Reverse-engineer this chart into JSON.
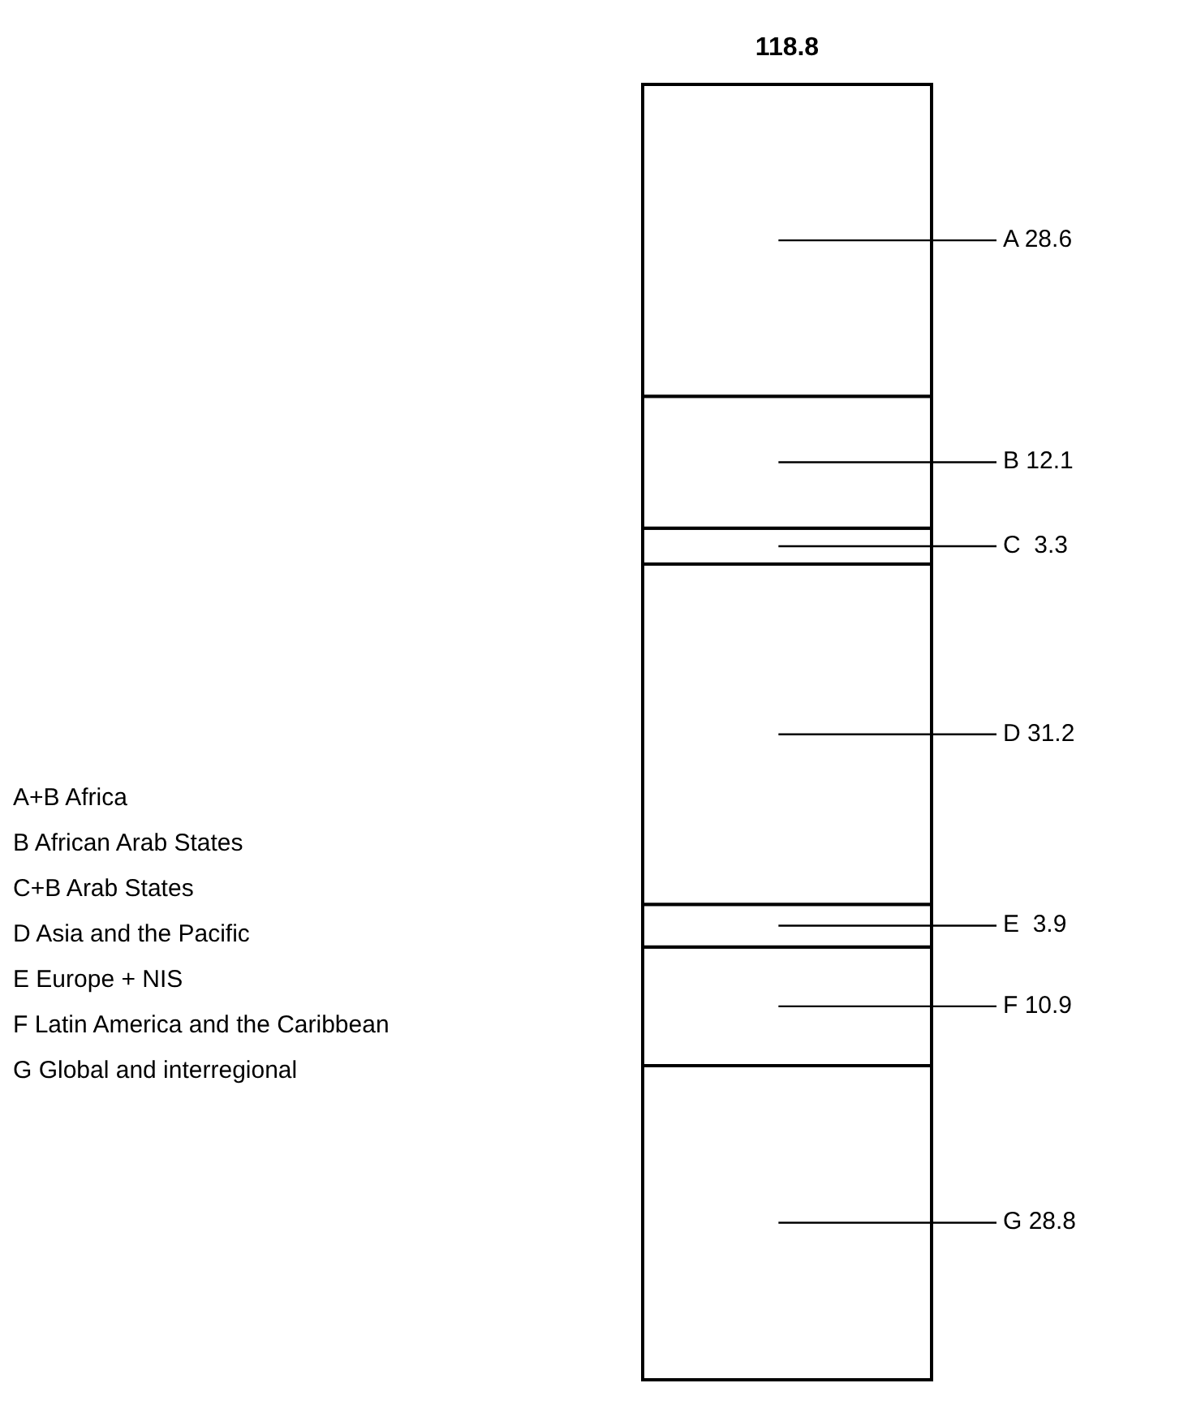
{
  "chart_data": {
    "type": "bar",
    "stacked": true,
    "categories": [
      null
    ],
    "series": [
      {
        "color": "#ffffff",
        "values": [
          28.8
        ],
        "value_labels": [
          "G 28.8"
        ]
      },
      {
        "color": "#ffffff",
        "values": [
          10.9
        ],
        "value_labels": [
          "F 10.9"
        ]
      },
      {
        "color": "#ffffff",
        "values": [
          3.9
        ],
        "value_labels": [
          "E  3.9"
        ]
      },
      {
        "color": "#ffffff",
        "values": [
          31.2
        ],
        "value_labels": [
          "D 31.2"
        ]
      },
      {
        "color": "#ffffff",
        "values": [
          3.3
        ],
        "value_labels": [
          "C  3.3"
        ]
      },
      {
        "color": "#ffffff",
        "values": [
          12.1
        ],
        "value_labels": [
          "B 12.1"
        ]
      },
      {
        "color": "#ffffff",
        "values": [
          28.6
        ],
        "value_labels": [
          "A 28.6"
        ]
      }
    ],
    "totals": [
      "118.8"
    ],
    "annotations": [
      "A+B Africa",
      "B African Arab States",
      "C+B Arab States",
      "D Asia and the Pacific",
      "E Europe + NIS",
      "F Latin America and the Caribbean",
      "G Global and interregional"
    ]
  }
}
